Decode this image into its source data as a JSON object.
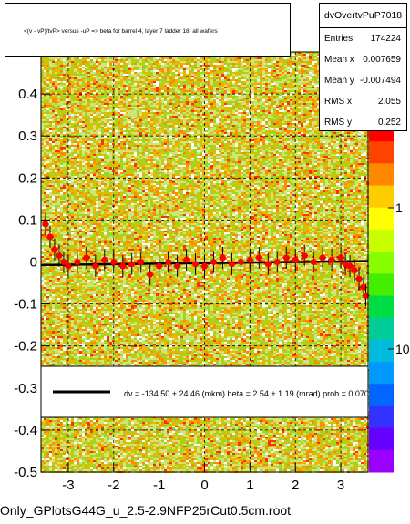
{
  "title": "<(v - vP)/tvP> versus -uP => beta for barrel 4, layer 7 ladder 18, all wafers",
  "stats": {
    "name": "dvOvertvPuP7018",
    "rows": [
      {
        "key": "Entries",
        "value": "174224"
      },
      {
        "key": "Mean x",
        "value": "0.007659"
      },
      {
        "key": "Mean y",
        "value": "-0.007494"
      },
      {
        "key": "RMS x",
        "value": "2.055"
      },
      {
        "key": "RMS y",
        "value": "0.252"
      }
    ]
  },
  "fit_text": "dv = -134.50 + 24.46 (mkm) beta =     2.54 +   1.19 (mrad) prob = 0.070",
  "file_label": "Only_GPlotsG44G_u_2.5-2.9NFP25rCut0.5cm.root",
  "colors": {
    "profile_points": "#ff0000",
    "fit_line": "#000000",
    "grid": "#000000"
  },
  "chart_data": {
    "type": "heatmap",
    "xlim": [
      -3.6,
      3.6
    ],
    "ylim": [
      -0.5,
      0.5
    ],
    "x_ticks": [
      "-3",
      "-2",
      "-1",
      "0",
      "1",
      "2",
      "3"
    ],
    "y_ticks": [
      "-0.5",
      "-0.4",
      "-0.3",
      "-0.2",
      "-0.1",
      "0",
      "0.1",
      "0.2",
      "0.3",
      "0.4"
    ],
    "z_ticks": [
      "1",
      "10"
    ],
    "z_scale": "log",
    "grid": true,
    "fit": {
      "intercept": -0.0027,
      "slope": 0.0013
    },
    "profile": {
      "x": [
        -3.5,
        -3.4,
        -3.3,
        -3.2,
        -3.1,
        -3.0,
        -2.8,
        -2.6,
        -2.4,
        -2.2,
        -2.0,
        -1.8,
        -1.6,
        -1.4,
        -1.2,
        -1.0,
        -0.8,
        -0.6,
        -0.4,
        -0.2,
        0.0,
        0.2,
        0.4,
        0.6,
        0.8,
        1.0,
        1.2,
        1.4,
        1.6,
        1.8,
        2.0,
        2.2,
        2.4,
        2.6,
        2.8,
        3.0,
        3.1,
        3.2,
        3.3,
        3.4,
        3.5,
        3.55
      ],
      "y": [
        0.09,
        0.06,
        0.03,
        0.015,
        0.0,
        -0.01,
        0.0,
        0.01,
        -0.01,
        0.005,
        0.0,
        -0.01,
        -0.005,
        0.0,
        -0.03,
        -0.01,
        0.0,
        -0.01,
        0.005,
        -0.005,
        -0.01,
        0.0,
        0.01,
        -0.005,
        0.0,
        0.005,
        0.01,
        -0.005,
        0.0,
        0.01,
        0.005,
        0.015,
        0.0,
        0.01,
        0.005,
        0.01,
        -0.005,
        -0.01,
        -0.02,
        -0.04,
        -0.06,
        -0.08
      ]
    }
  }
}
